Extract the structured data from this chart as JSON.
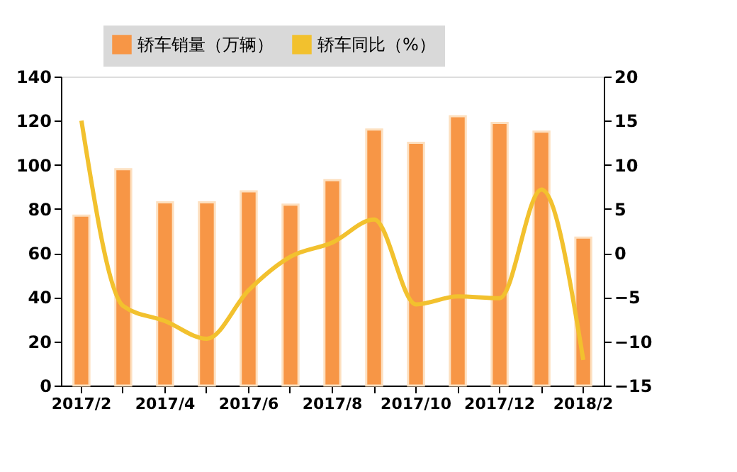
{
  "chart_data": {
    "type": "bar",
    "categories": [
      "2017/2",
      null,
      "2017/4",
      null,
      "2017/6",
      null,
      "2017/8",
      null,
      "2017/10",
      null,
      "2017/12",
      null,
      "2018/2"
    ],
    "series": [
      {
        "name": "轿车销量（万辆）",
        "color": "#f79646",
        "values": [
          77,
          98,
          83,
          83,
          88,
          82,
          93,
          116,
          110,
          122,
          119,
          115,
          67
        ]
      },
      {
        "name": "轿车同比（%）",
        "type": "line",
        "axis": "y2",
        "color": "#f2c12e",
        "values": [
          15,
          -6,
          -7.7,
          -9.7,
          -4.2,
          -0.4,
          1.2,
          3.8,
          -5.8,
          -4.9,
          -5.1,
          7.2,
          -12.1
        ]
      }
    ],
    "ylim": [
      0,
      140
    ],
    "yticks": [
      0,
      20,
      40,
      60,
      80,
      100,
      120,
      140
    ],
    "y2lim": [
      -15,
      20
    ],
    "y2ticks": [
      -15,
      -10,
      -5,
      0,
      5,
      10,
      15,
      20
    ],
    "grid": false,
    "legend": "top left",
    "line_style": "solid",
    "marker": "none"
  }
}
